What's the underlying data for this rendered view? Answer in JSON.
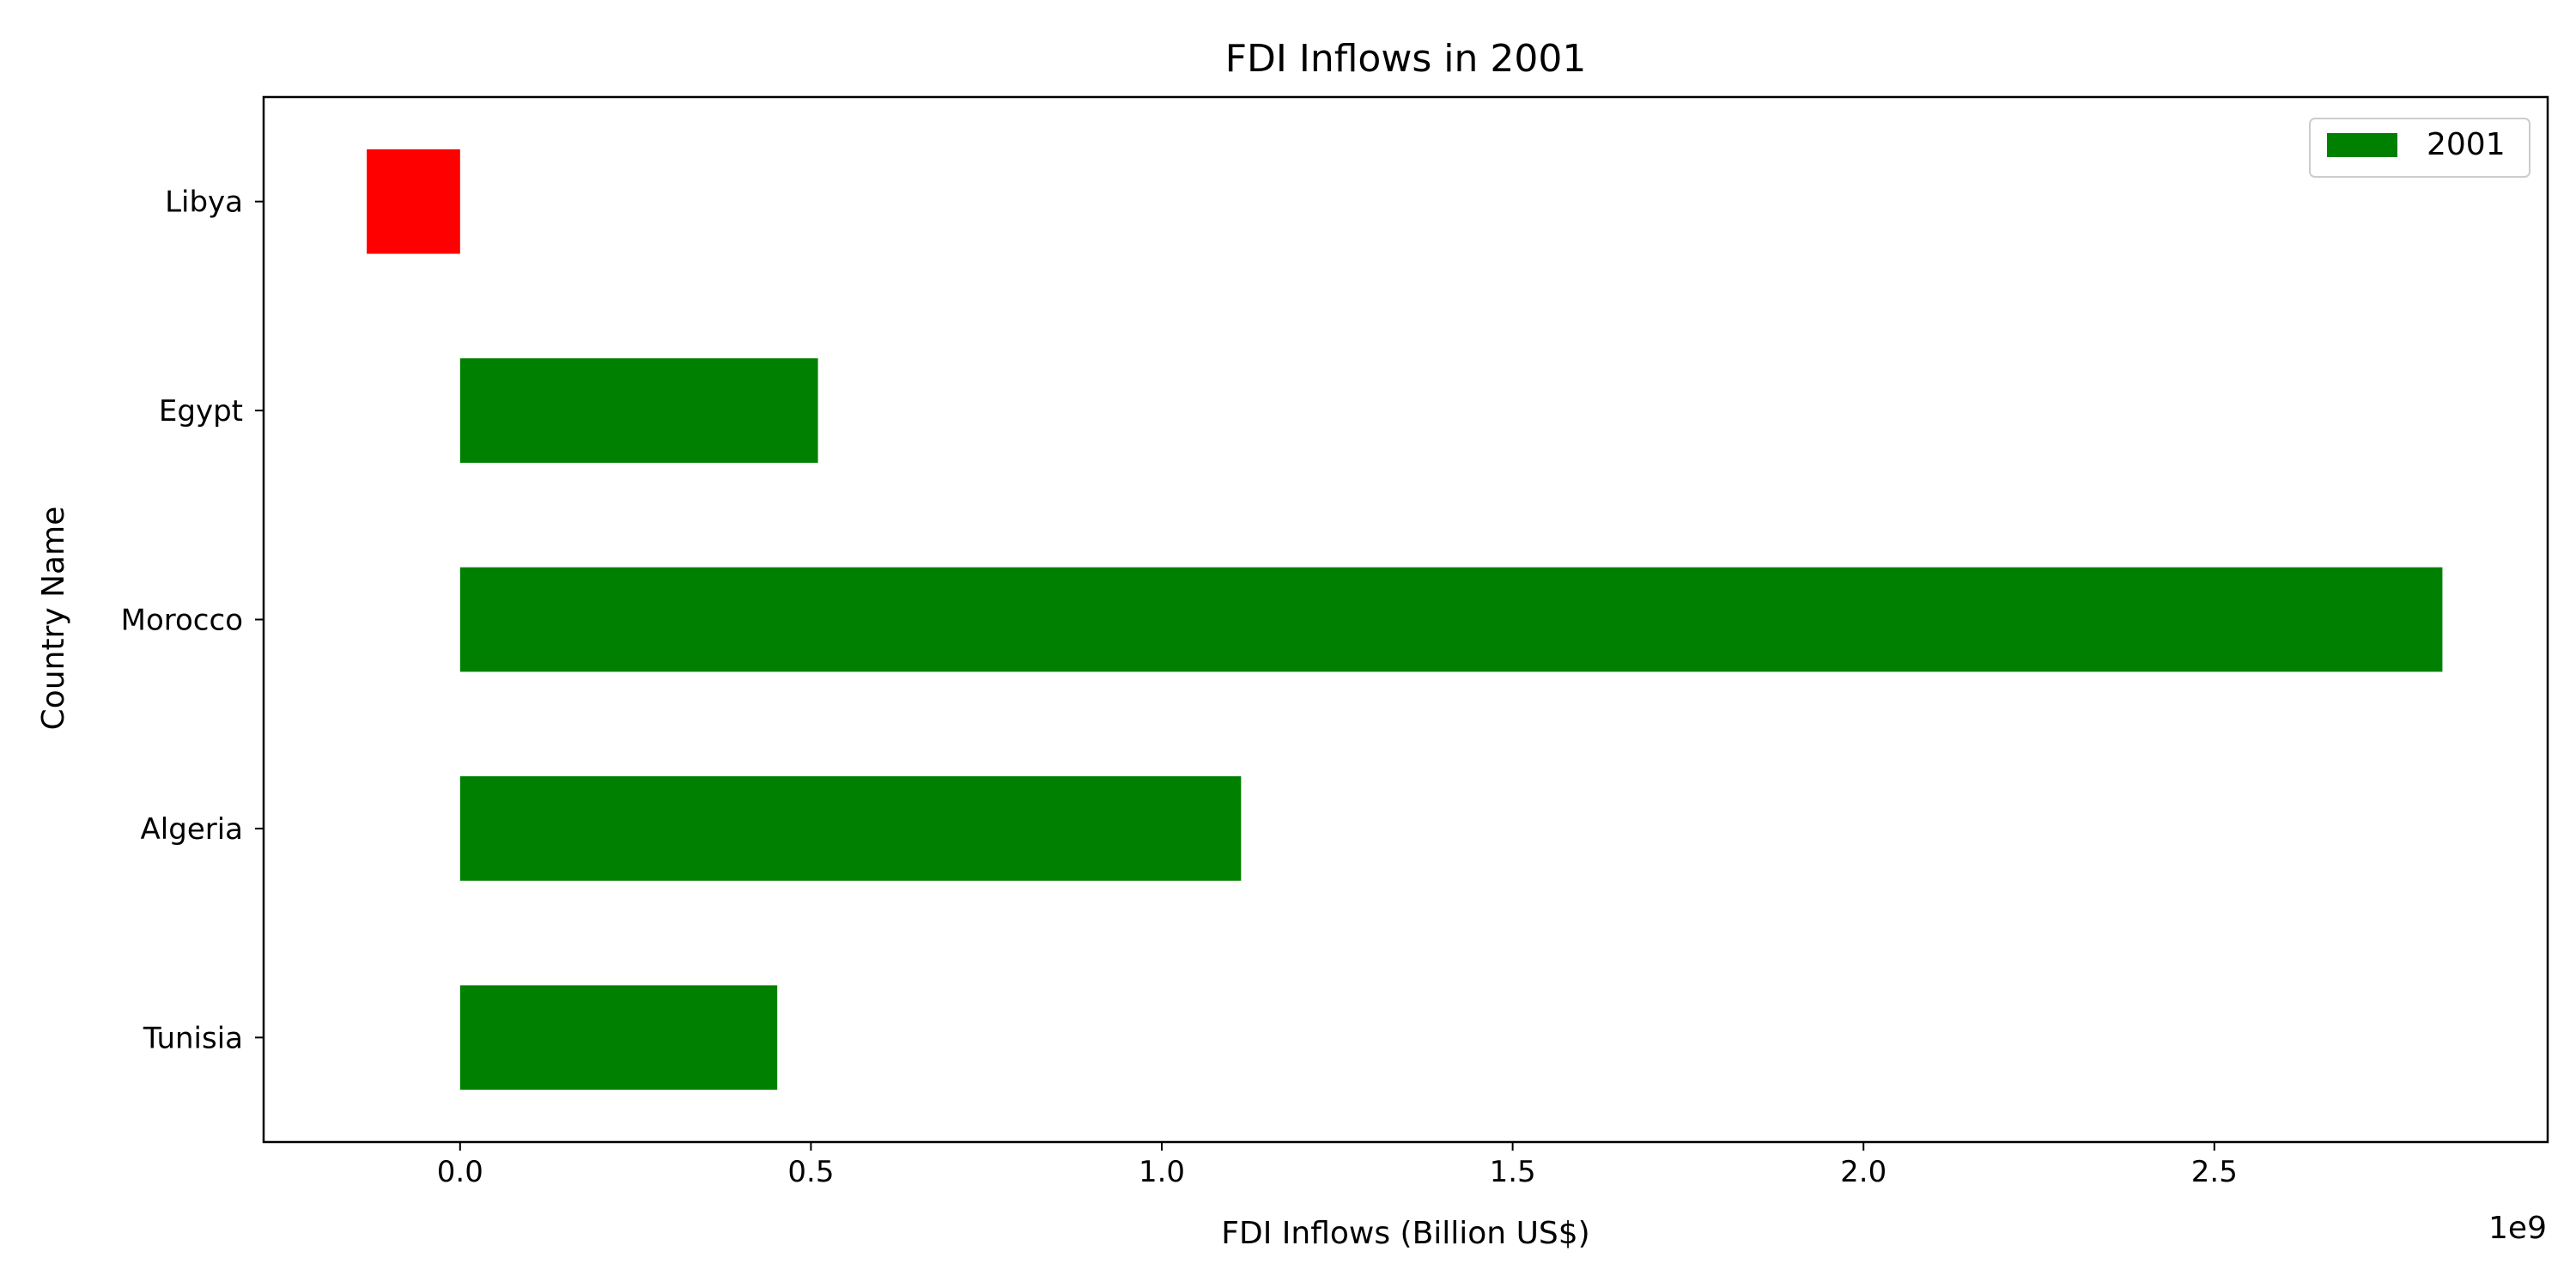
{
  "chart_data": {
    "type": "bar",
    "orientation": "horizontal",
    "title": "FDI Inflows in 2001",
    "xlabel": "FDI Inflows (Billion US$)",
    "ylabel": "Country Name",
    "x_offset_label": "1e9",
    "categories": [
      "Tunisia",
      "Algeria",
      "Morocco",
      "Egypt",
      "Libya"
    ],
    "series": [
      {
        "name": "2001",
        "values": [
          452000000,
          1113000000,
          2825000000,
          510000000,
          -133000000
        ]
      }
    ],
    "xlim": [
      -280000000,
      2975000000
    ],
    "xticks": [
      0,
      500000000,
      1000000000,
      1500000000,
      2000000000,
      2500000000
    ],
    "xtick_labels": [
      "0.0",
      "0.5",
      "1.0",
      "1.5",
      "2.0",
      "2.5"
    ],
    "legend_position": "top-right",
    "grid": false,
    "colors": {
      "positive": "#008000",
      "negative": "#ff0000",
      "axis": "#000000",
      "background": "#ffffff"
    }
  }
}
